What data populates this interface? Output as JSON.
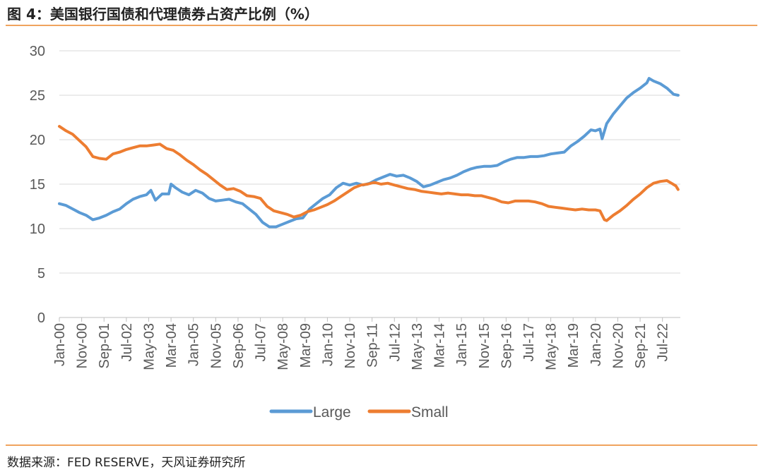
{
  "header": {
    "title": "图 4：美国银行国债和代理债券占资产比例（%）"
  },
  "footer": {
    "source": "数据来源：FED RESERVE，天风证券研究所"
  },
  "colors": {
    "large": "#5b9bd5",
    "small": "#ed7d31",
    "grid": "#d9d9d9",
    "rule": "#f0a35e"
  },
  "chart_data": {
    "type": "line",
    "title": "",
    "xlabel": "",
    "ylabel": "",
    "ylim": [
      0,
      30
    ],
    "yticks": [
      0,
      5,
      10,
      15,
      20,
      25,
      30
    ],
    "xlim": [
      "2000-01",
      "2023-03"
    ],
    "xticks": [
      "Jan-00",
      "Nov-00",
      "Sep-01",
      "Jul-02",
      "May-03",
      "Mar-04",
      "Jan-05",
      "Nov-05",
      "Sep-06",
      "Jul-07",
      "May-08",
      "Mar-09",
      "Jan-10",
      "Nov-10",
      "Sep-11",
      "Jul-12",
      "May-13",
      "Mar-14",
      "Jan-15",
      "Nov-15",
      "Sep-16",
      "Jul-17",
      "May-18",
      "Mar-19",
      "Jan-20",
      "Nov-20",
      "Sep-21",
      "Jul-22"
    ],
    "grid": true,
    "legend": "bottom",
    "series": [
      {
        "name": "Large",
        "points": [
          [
            "2000-01",
            12.8
          ],
          [
            "2000-04",
            12.6
          ],
          [
            "2000-07",
            12.2
          ],
          [
            "2000-10",
            11.8
          ],
          [
            "2001-01",
            11.5
          ],
          [
            "2001-04",
            11.0
          ],
          [
            "2001-07",
            11.2
          ],
          [
            "2001-10",
            11.5
          ],
          [
            "2002-01",
            11.9
          ],
          [
            "2002-04",
            12.2
          ],
          [
            "2002-07",
            12.8
          ],
          [
            "2002-10",
            13.3
          ],
          [
            "2003-01",
            13.6
          ],
          [
            "2003-04",
            13.8
          ],
          [
            "2003-06",
            14.3
          ],
          [
            "2003-08",
            13.2
          ],
          [
            "2003-11",
            13.9
          ],
          [
            "2004-02",
            13.9
          ],
          [
            "2004-03",
            15.0
          ],
          [
            "2004-05",
            14.6
          ],
          [
            "2004-08",
            14.1
          ],
          [
            "2004-11",
            13.8
          ],
          [
            "2005-02",
            14.3
          ],
          [
            "2005-05",
            14.0
          ],
          [
            "2005-08",
            13.4
          ],
          [
            "2005-11",
            13.1
          ],
          [
            "2006-02",
            13.2
          ],
          [
            "2006-05",
            13.3
          ],
          [
            "2006-08",
            13.0
          ],
          [
            "2006-11",
            12.8
          ],
          [
            "2007-02",
            12.2
          ],
          [
            "2007-05",
            11.6
          ],
          [
            "2007-08",
            10.7
          ],
          [
            "2007-11",
            10.2
          ],
          [
            "2008-02",
            10.2
          ],
          [
            "2008-05",
            10.5
          ],
          [
            "2008-08",
            10.8
          ],
          [
            "2008-11",
            11.1
          ],
          [
            "2009-02",
            11.2
          ],
          [
            "2009-05",
            12.2
          ],
          [
            "2009-08",
            12.8
          ],
          [
            "2009-11",
            13.4
          ],
          [
            "2010-02",
            13.8
          ],
          [
            "2010-05",
            14.6
          ],
          [
            "2010-08",
            15.1
          ],
          [
            "2010-11",
            14.9
          ],
          [
            "2011-02",
            15.1
          ],
          [
            "2011-05",
            14.9
          ],
          [
            "2011-08",
            15.1
          ],
          [
            "2011-11",
            15.5
          ],
          [
            "2012-02",
            15.8
          ],
          [
            "2012-05",
            16.1
          ],
          [
            "2012-08",
            15.9
          ],
          [
            "2012-11",
            16.0
          ],
          [
            "2013-02",
            15.7
          ],
          [
            "2013-05",
            15.3
          ],
          [
            "2013-08",
            14.7
          ],
          [
            "2013-11",
            14.9
          ],
          [
            "2014-02",
            15.2
          ],
          [
            "2014-05",
            15.5
          ],
          [
            "2014-08",
            15.7
          ],
          [
            "2014-11",
            16.0
          ],
          [
            "2015-02",
            16.4
          ],
          [
            "2015-05",
            16.7
          ],
          [
            "2015-08",
            16.9
          ],
          [
            "2015-11",
            17.0
          ],
          [
            "2016-02",
            17.0
          ],
          [
            "2016-05",
            17.1
          ],
          [
            "2016-08",
            17.5
          ],
          [
            "2016-11",
            17.8
          ],
          [
            "2017-02",
            18.0
          ],
          [
            "2017-05",
            18.0
          ],
          [
            "2017-08",
            18.1
          ],
          [
            "2017-11",
            18.1
          ],
          [
            "2018-02",
            18.2
          ],
          [
            "2018-05",
            18.4
          ],
          [
            "2018-08",
            18.5
          ],
          [
            "2018-11",
            18.6
          ],
          [
            "2019-02",
            19.3
          ],
          [
            "2019-05",
            19.8
          ],
          [
            "2019-08",
            20.4
          ],
          [
            "2019-11",
            21.1
          ],
          [
            "2020-01",
            21.0
          ],
          [
            "2020-03",
            21.2
          ],
          [
            "2020-04",
            20.1
          ],
          [
            "2020-06",
            21.8
          ],
          [
            "2020-09",
            22.9
          ],
          [
            "2020-12",
            23.8
          ],
          [
            "2021-03",
            24.7
          ],
          [
            "2021-06",
            25.3
          ],
          [
            "2021-09",
            25.8
          ],
          [
            "2021-12",
            26.4
          ],
          [
            "2022-01",
            26.9
          ],
          [
            "2022-03",
            26.6
          ],
          [
            "2022-06",
            26.3
          ],
          [
            "2022-09",
            25.8
          ],
          [
            "2022-12",
            25.1
          ],
          [
            "2023-02",
            25.0
          ]
        ]
      },
      {
        "name": "Small",
        "points": [
          [
            "2000-01",
            21.5
          ],
          [
            "2000-04",
            21.0
          ],
          [
            "2000-07",
            20.6
          ],
          [
            "2000-10",
            19.9
          ],
          [
            "2001-01",
            19.2
          ],
          [
            "2001-04",
            18.1
          ],
          [
            "2001-07",
            17.9
          ],
          [
            "2001-10",
            17.8
          ],
          [
            "2002-01",
            18.4
          ],
          [
            "2002-04",
            18.6
          ],
          [
            "2002-07",
            18.9
          ],
          [
            "2002-10",
            19.1
          ],
          [
            "2003-01",
            19.3
          ],
          [
            "2003-04",
            19.3
          ],
          [
            "2003-07",
            19.4
          ],
          [
            "2003-10",
            19.5
          ],
          [
            "2004-01",
            19.0
          ],
          [
            "2004-04",
            18.8
          ],
          [
            "2004-07",
            18.3
          ],
          [
            "2004-10",
            17.7
          ],
          [
            "2005-01",
            17.2
          ],
          [
            "2005-04",
            16.6
          ],
          [
            "2005-07",
            16.1
          ],
          [
            "2005-10",
            15.5
          ],
          [
            "2006-01",
            14.9
          ],
          [
            "2006-04",
            14.4
          ],
          [
            "2006-07",
            14.5
          ],
          [
            "2006-10",
            14.2
          ],
          [
            "2007-01",
            13.7
          ],
          [
            "2007-04",
            13.6
          ],
          [
            "2007-07",
            13.4
          ],
          [
            "2007-10",
            12.5
          ],
          [
            "2008-01",
            12.0
          ],
          [
            "2008-04",
            11.8
          ],
          [
            "2008-07",
            11.6
          ],
          [
            "2008-10",
            11.3
          ],
          [
            "2009-01",
            11.5
          ],
          [
            "2009-04",
            11.9
          ],
          [
            "2009-07",
            12.1
          ],
          [
            "2009-10",
            12.4
          ],
          [
            "2010-01",
            12.7
          ],
          [
            "2010-04",
            13.1
          ],
          [
            "2010-07",
            13.6
          ],
          [
            "2010-10",
            14.1
          ],
          [
            "2011-01",
            14.6
          ],
          [
            "2011-04",
            14.9
          ],
          [
            "2011-07",
            15.0
          ],
          [
            "2011-10",
            15.2
          ],
          [
            "2012-01",
            15.0
          ],
          [
            "2012-04",
            15.1
          ],
          [
            "2012-07",
            14.9
          ],
          [
            "2012-10",
            14.7
          ],
          [
            "2013-01",
            14.5
          ],
          [
            "2013-04",
            14.4
          ],
          [
            "2013-07",
            14.2
          ],
          [
            "2013-10",
            14.1
          ],
          [
            "2014-01",
            14.0
          ],
          [
            "2014-04",
            13.9
          ],
          [
            "2014-07",
            14.0
          ],
          [
            "2014-10",
            13.9
          ],
          [
            "2015-01",
            13.8
          ],
          [
            "2015-04",
            13.8
          ],
          [
            "2015-07",
            13.7
          ],
          [
            "2015-10",
            13.7
          ],
          [
            "2016-01",
            13.5
          ],
          [
            "2016-04",
            13.3
          ],
          [
            "2016-07",
            13.0
          ],
          [
            "2016-10",
            12.9
          ],
          [
            "2017-01",
            13.1
          ],
          [
            "2017-04",
            13.1
          ],
          [
            "2017-07",
            13.1
          ],
          [
            "2017-10",
            13.0
          ],
          [
            "2018-01",
            12.8
          ],
          [
            "2018-04",
            12.5
          ],
          [
            "2018-07",
            12.4
          ],
          [
            "2018-10",
            12.3
          ],
          [
            "2019-01",
            12.2
          ],
          [
            "2019-04",
            12.1
          ],
          [
            "2019-07",
            12.2
          ],
          [
            "2019-10",
            12.1
          ],
          [
            "2020-01",
            12.1
          ],
          [
            "2020-03",
            12.0
          ],
          [
            "2020-05",
            11.0
          ],
          [
            "2020-06",
            10.9
          ],
          [
            "2020-09",
            11.5
          ],
          [
            "2020-12",
            12.0
          ],
          [
            "2021-03",
            12.6
          ],
          [
            "2021-06",
            13.3
          ],
          [
            "2021-09",
            13.9
          ],
          [
            "2021-12",
            14.6
          ],
          [
            "2022-03",
            15.1
          ],
          [
            "2022-06",
            15.3
          ],
          [
            "2022-09",
            15.4
          ],
          [
            "2022-11",
            15.1
          ],
          [
            "2023-01",
            14.8
          ],
          [
            "2023-02",
            14.4
          ]
        ]
      }
    ]
  }
}
